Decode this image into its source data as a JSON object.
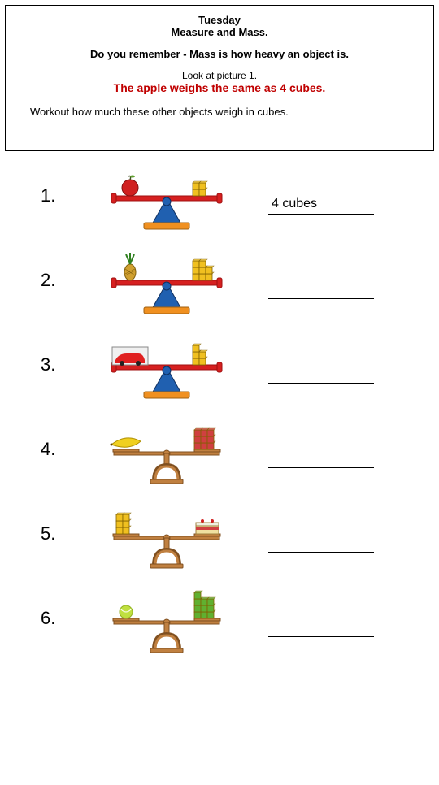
{
  "header": {
    "day": "Tuesday",
    "title": "Measure and Mass.",
    "remember": "Do you remember - Mass is how heavy an object is.",
    "look": "Look at picture 1.",
    "example": "The apple weighs the same as 4 cubes.",
    "example_color": "#c00000",
    "workout": "Workout how much these other objects weigh in cubes."
  },
  "questions": [
    {
      "num": "1.",
      "answer": "4 cubes",
      "scale_type": "triangle",
      "left_item": "apple",
      "cube_color": "#f0c020",
      "cube_count": 4
    },
    {
      "num": "2.",
      "answer": "",
      "scale_type": "triangle",
      "left_item": "pineapple",
      "cube_color": "#f0c020",
      "cube_count": 8
    },
    {
      "num": "3.",
      "answer": "",
      "scale_type": "triangle",
      "left_item": "car",
      "cube_color": "#f0c020",
      "cube_count": 5
    },
    {
      "num": "4.",
      "answer": "",
      "scale_type": "pedestal",
      "left_item": "banana",
      "cube_color": "#d04040",
      "cube_count": 9
    },
    {
      "num": "5.",
      "answer": "",
      "scale_type": "pedestal",
      "left_item": "cake",
      "cube_color": "#f0c020",
      "cube_count": 6,
      "item_on_right": true
    },
    {
      "num": "6.",
      "answer": "",
      "scale_type": "pedestal",
      "left_item": "tennis",
      "cube_color": "#60b030",
      "cube_count": 10
    }
  ],
  "colors": {
    "beam": "#d62020",
    "beam_dark": "#a01010",
    "fulcrum_blue": "#2060b0",
    "fulcrum_orange": "#f09020",
    "pedestal_brown": "#c08040",
    "pedestal_dark": "#805020"
  }
}
